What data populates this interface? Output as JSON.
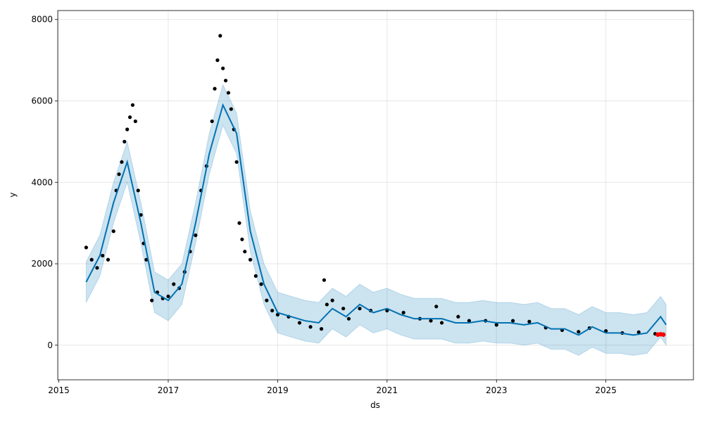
{
  "chart_data": {
    "type": "line",
    "xlabel": "ds",
    "ylabel": "y",
    "xlim": [
      2014.98,
      2026.6
    ],
    "ylim": [
      -850,
      8220
    ],
    "xticks": [
      2015,
      2017,
      2019,
      2021,
      2023,
      2025
    ],
    "yticks": [
      0,
      2000,
      4000,
      6000,
      8000
    ],
    "grid": true,
    "forecast": {
      "color": "#0072B2",
      "x": [
        2015.5,
        2015.75,
        2016.0,
        2016.25,
        2016.5,
        2016.75,
        2017.0,
        2017.25,
        2017.5,
        2017.75,
        2018.0,
        2018.25,
        2018.5,
        2018.75,
        2019.0,
        2019.25,
        2019.5,
        2019.75,
        2020.0,
        2020.25,
        2020.5,
        2020.75,
        2021.0,
        2021.25,
        2021.5,
        2021.75,
        2022.0,
        2022.25,
        2022.5,
        2022.75,
        2023.0,
        2023.25,
        2023.5,
        2023.75,
        2024.0,
        2024.25,
        2024.5,
        2024.75,
        2025.0,
        2025.25,
        2025.5,
        2025.75,
        2026.0,
        2026.1
      ],
      "values": [
        1550,
        2200,
        3500,
        4500,
        3000,
        1300,
        1100,
        1500,
        3000,
        4700,
        5900,
        5200,
        2800,
        1500,
        800,
        700,
        600,
        550,
        900,
        700,
        1000,
        800,
        900,
        750,
        650,
        650,
        650,
        550,
        550,
        600,
        550,
        550,
        500,
        550,
        400,
        400,
        250,
        450,
        300,
        300,
        250,
        300,
        700,
        500
      ],
      "lower": [
        1050,
        1700,
        3000,
        4000,
        2500,
        800,
        600,
        1000,
        2500,
        4200,
        5400,
        4700,
        2300,
        1000,
        300,
        200,
        100,
        50,
        400,
        200,
        500,
        300,
        400,
        250,
        150,
        150,
        150,
        50,
        50,
        100,
        50,
        50,
        0,
        50,
        -100,
        -100,
        -250,
        -50,
        -200,
        -200,
        -250,
        -200,
        200,
        0
      ],
      "upper": [
        2050,
        2700,
        4000,
        5000,
        3500,
        1800,
        1600,
        2000,
        3500,
        5200,
        6400,
        5700,
        3300,
        2000,
        1300,
        1200,
        1100,
        1050,
        1400,
        1200,
        1500,
        1300,
        1400,
        1250,
        1150,
        1150,
        1150,
        1050,
        1050,
        1100,
        1050,
        1050,
        1000,
        1050,
        900,
        900,
        750,
        950,
        800,
        800,
        750,
        800,
        1200,
        1000
      ]
    },
    "observed": {
      "color": "#000000",
      "x": [
        2015.5,
        2015.6,
        2015.7,
        2015.8,
        2015.9,
        2016.0,
        2016.05,
        2016.1,
        2016.15,
        2016.2,
        2016.25,
        2016.3,
        2016.35,
        2016.4,
        2016.45,
        2016.5,
        2016.55,
        2016.6,
        2016.7,
        2016.8,
        2016.9,
        2017.0,
        2017.1,
        2017.2,
        2017.3,
        2017.4,
        2017.5,
        2017.6,
        2017.7,
        2017.8,
        2017.85,
        2017.9,
        2017.95,
        2018.0,
        2018.05,
        2018.1,
        2018.15,
        2018.2,
        2018.25,
        2018.3,
        2018.35,
        2018.4,
        2018.5,
        2018.6,
        2018.7,
        2018.8,
        2018.9,
        2019.0,
        2019.2,
        2019.4,
        2019.6,
        2019.8,
        2019.85,
        2019.9,
        2020.0,
        2020.2,
        2020.3,
        2020.5,
        2020.7,
        2021.0,
        2021.3,
        2021.6,
        2021.8,
        2021.9,
        2022.0,
        2022.3,
        2022.5,
        2022.8,
        2023.0,
        2023.3,
        2023.6,
        2023.9,
        2024.2,
        2024.5,
        2024.7,
        2025.0,
        2025.3,
        2025.6,
        2025.9
      ],
      "values": [
        2400,
        2100,
        1900,
        2200,
        2100,
        2800,
        3800,
        4200,
        4500,
        5000,
        5300,
        5600,
        5900,
        5500,
        3800,
        3200,
        2500,
        2100,
        1100,
        1300,
        1150,
        1200,
        1500,
        1400,
        1800,
        2300,
        2700,
        3800,
        4400,
        5500,
        6300,
        7000,
        7600,
        6800,
        6500,
        6200,
        5800,
        5300,
        4500,
        3000,
        2600,
        2300,
        2100,
        1700,
        1500,
        1100,
        850,
        750,
        700,
        550,
        450,
        400,
        1600,
        1000,
        1100,
        900,
        650,
        900,
        850,
        850,
        800,
        650,
        600,
        950,
        550,
        700,
        600,
        600,
        500,
        600,
        580,
        430,
        370,
        330,
        420,
        350,
        300,
        320,
        280
      ]
    },
    "test": {
      "color": "#ff0000",
      "x": [
        2025.95,
        2026.0,
        2026.05
      ],
      "values": [
        260,
        270,
        260
      ]
    }
  }
}
